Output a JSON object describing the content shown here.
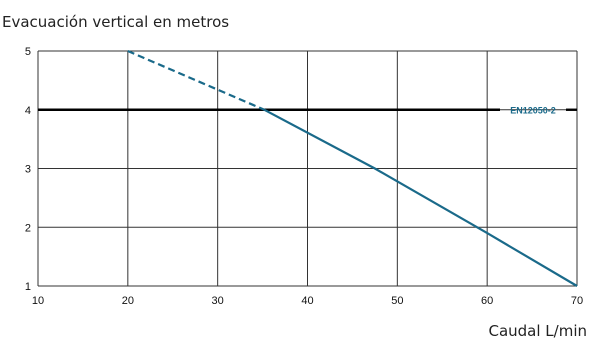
{
  "chart_data": {
    "type": "line",
    "title": "Evacuación vertical en metros",
    "xlabel": "Caudal L/min",
    "ylabel": "",
    "xlim": [
      10,
      70
    ],
    "ylim": [
      1,
      5
    ],
    "x_ticks": [
      "10",
      "20",
      "30",
      "40",
      "50",
      "60",
      "70"
    ],
    "y_ticks": [
      "1",
      "2",
      "3",
      "4",
      "5"
    ],
    "grid": true,
    "series": [
      {
        "style": "dashed",
        "color": "#1a6a8a",
        "x": [
          20,
          35.2
        ],
        "y": [
          5,
          4
        ]
      },
      {
        "style": "solid",
        "color": "#1a6a8a",
        "x": [
          35.2,
          47.5,
          60,
          70
        ],
        "y": [
          4,
          3,
          1.9,
          1
        ]
      }
    ],
    "reference_line": {
      "y": 4,
      "color": "#000000",
      "label": "EN12050-2",
      "label_color": "#1a6a8a"
    }
  }
}
